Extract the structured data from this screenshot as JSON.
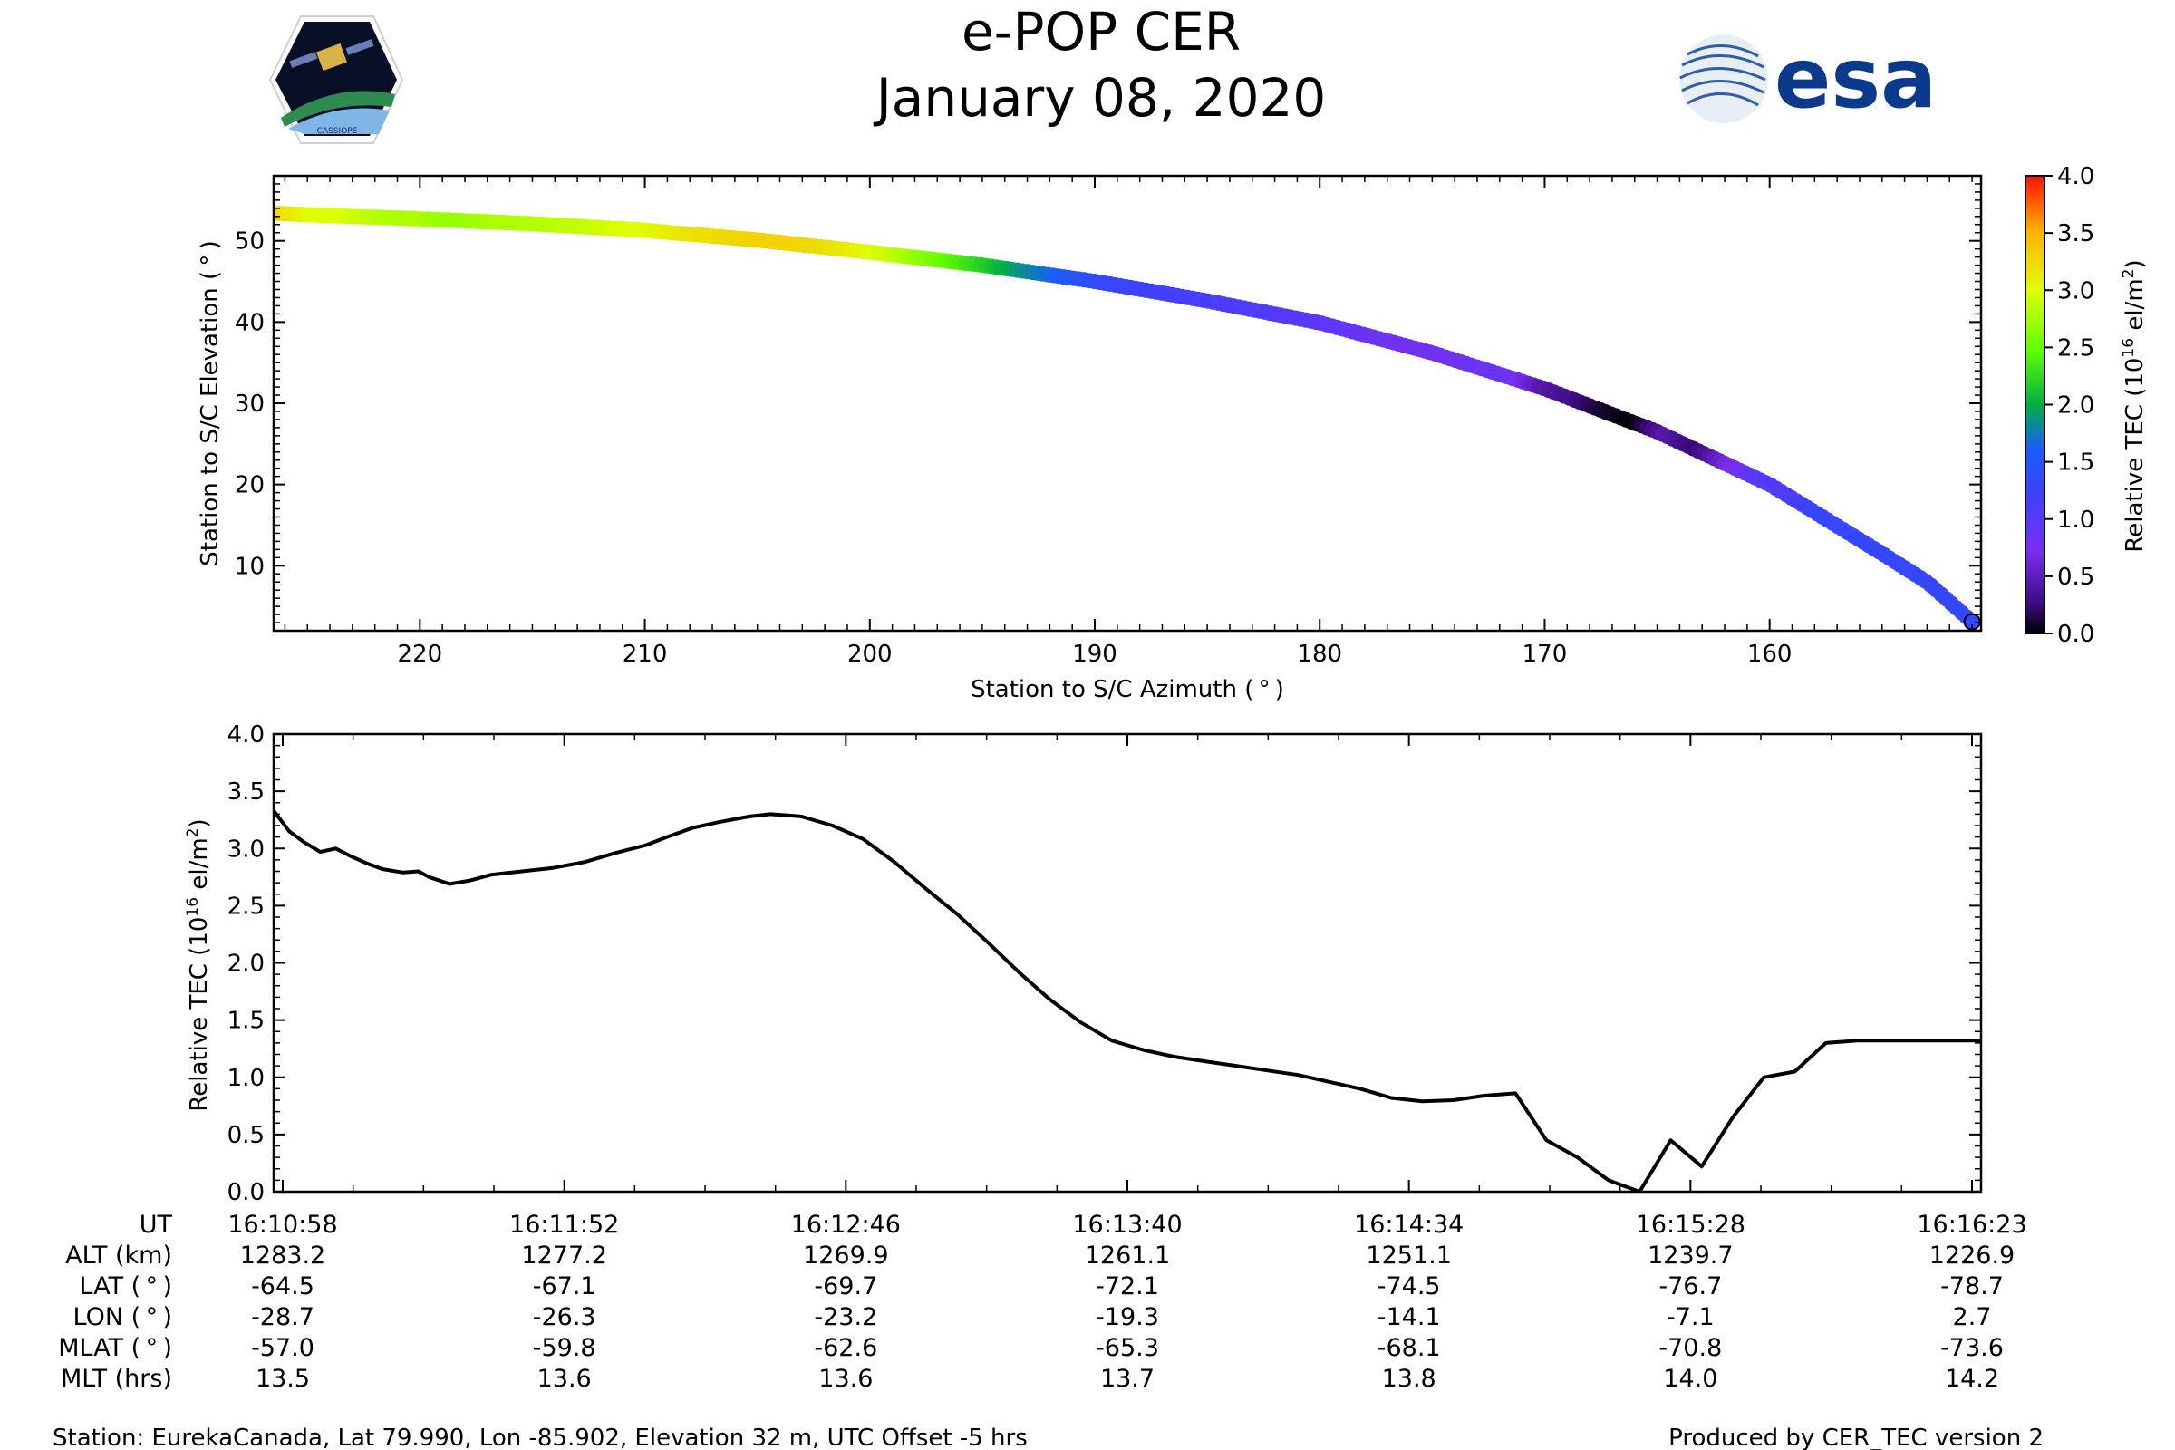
{
  "header": {
    "title_line1": "e-POP CER",
    "title_line2": "January 08, 2020",
    "left_logo_text": "CASSIOPE",
    "right_logo_text": "esa"
  },
  "colorbar": {
    "label": "Relative TEC (10",
    "label_exp": "16",
    "label_unit": " el/m",
    "label_unit_exp": "2",
    "label_close": ")",
    "ticks": [
      "0.0",
      "0.5",
      "1.0",
      "1.5",
      "2.0",
      "2.5",
      "3.0",
      "3.5",
      "4.0"
    ],
    "range": [
      0,
      4
    ]
  },
  "chart_data": [
    {
      "type": "scatter",
      "title": "",
      "xlabel": "Station to S/C Azimuth ( ° )",
      "ylabel": "Station to S/C Elevation ( ° )",
      "xlim": [
        226.5,
        150.6
      ],
      "ylim": [
        2,
        58
      ],
      "xticks": [
        "220",
        "210",
        "200",
        "190",
        "180",
        "170",
        "160"
      ],
      "xtick_values": [
        220,
        210,
        200,
        190,
        180,
        170,
        160
      ],
      "yticks": [
        "10",
        "20",
        "30",
        "40",
        "50"
      ],
      "ytick_values": [
        10,
        20,
        30,
        40,
        50
      ],
      "color_by": "Relative TEC (10^16 el/m^2)",
      "azimuth_range": [
        226.5,
        151.0
      ],
      "elevation_keypoints": {
        "azimuth": [
          226.5,
          224,
          220,
          215,
          210,
          205,
          200,
          195,
          190,
          185,
          180,
          175,
          170,
          165,
          160,
          157,
          155,
          153,
          151
        ],
        "elevation": [
          53.4,
          53.1,
          52.7,
          52.1,
          51.3,
          50.1,
          48.6,
          47.0,
          45.0,
          42.6,
          39.9,
          36.2,
          31.8,
          26.5,
          20.0,
          14.9,
          11.5,
          8.0,
          3.1
        ]
      },
      "points_count": 330
    },
    {
      "type": "line",
      "title": "",
      "xlabel": "",
      "ylabel": "Relative TEC (10^16 el/m^2)",
      "ylabel_parts": {
        "pre": "Relative TEC (10",
        "exp": "16",
        "mid": " el/m",
        "exp2": "2",
        "post": ")"
      },
      "ylim": [
        0,
        4
      ],
      "yticks": [
        "0.0",
        "0.5",
        "1.0",
        "1.5",
        "2.0",
        "2.5",
        "3.0",
        "3.5",
        "4.0"
      ],
      "ytick_values": [
        0,
        0.5,
        1,
        1.5,
        2,
        2.5,
        3,
        3.5,
        4
      ],
      "x_seconds_range": [
        0,
        330
      ],
      "series": [
        {
          "name": "Relative TEC",
          "x_seconds": [
            0,
            3,
            6,
            9,
            12,
            15,
            18,
            21,
            25,
            28,
            30,
            34,
            38,
            42,
            48,
            54,
            60,
            66,
            72,
            76,
            81,
            86,
            92,
            96,
            102,
            108,
            114,
            120,
            126,
            132,
            138,
            144,
            150,
            156,
            162,
            168,
            174,
            180,
            186,
            192,
            198,
            204,
            210,
            216,
            222,
            228,
            234,
            240,
            246,
            252,
            258,
            264,
            270,
            276,
            282,
            288,
            294,
            300,
            306,
            312,
            318,
            324,
            327,
            330
          ],
          "values": [
            3.33,
            3.15,
            3.05,
            2.97,
            3.0,
            2.93,
            2.87,
            2.82,
            2.79,
            2.8,
            2.75,
            2.69,
            2.72,
            2.77,
            2.8,
            2.83,
            2.88,
            2.96,
            3.03,
            3.1,
            3.18,
            3.23,
            3.28,
            3.3,
            3.28,
            3.2,
            3.08,
            2.88,
            2.65,
            2.43,
            2.18,
            1.92,
            1.68,
            1.48,
            1.32,
            1.24,
            1.18,
            1.14,
            1.1,
            1.06,
            1.02,
            0.96,
            0.9,
            0.82,
            0.79,
            0.8,
            0.84,
            0.86,
            0.45,
            0.3,
            0.1,
            0.0,
            0.45,
            0.22,
            0.65,
            1.0,
            1.05,
            1.3,
            1.32,
            1.32,
            1.32,
            1.32,
            1.32,
            1.32
          ]
        }
      ]
    }
  ],
  "table": {
    "row_labels": [
      "UT",
      "ALT (km)",
      "LAT ( ° )",
      "LON ( ° )",
      "MLAT ( ° )",
      "MLT (hrs)"
    ],
    "columns": [
      [
        "16:10:58",
        "1283.2",
        "-64.5",
        "-28.7",
        "-57.0",
        "13.5"
      ],
      [
        "16:11:52",
        "1277.2",
        "-67.1",
        "-26.3",
        "-59.8",
        "13.6"
      ],
      [
        "16:12:46",
        "1269.9",
        "-69.7",
        "-23.2",
        "-62.6",
        "13.6"
      ],
      [
        "16:13:40",
        "1261.1",
        "-72.1",
        "-19.3",
        "-65.3",
        "13.7"
      ],
      [
        "16:14:34",
        "1251.1",
        "-74.5",
        "-14.1",
        "-68.1",
        "13.8"
      ],
      [
        "16:15:28",
        "1239.7",
        "-76.7",
        "-7.1",
        "-70.8",
        "14.0"
      ],
      [
        "16:16:23",
        "1226.9",
        "-78.7",
        "2.7",
        "-73.6",
        "14.2"
      ]
    ]
  },
  "footer": {
    "station": "Station: EurekaCanada, Lat 79.990, Lon -85.902, Elevation 32 m, UTC Offset -5 hrs",
    "produced_by": "Produced by CER_TEC version 2"
  }
}
